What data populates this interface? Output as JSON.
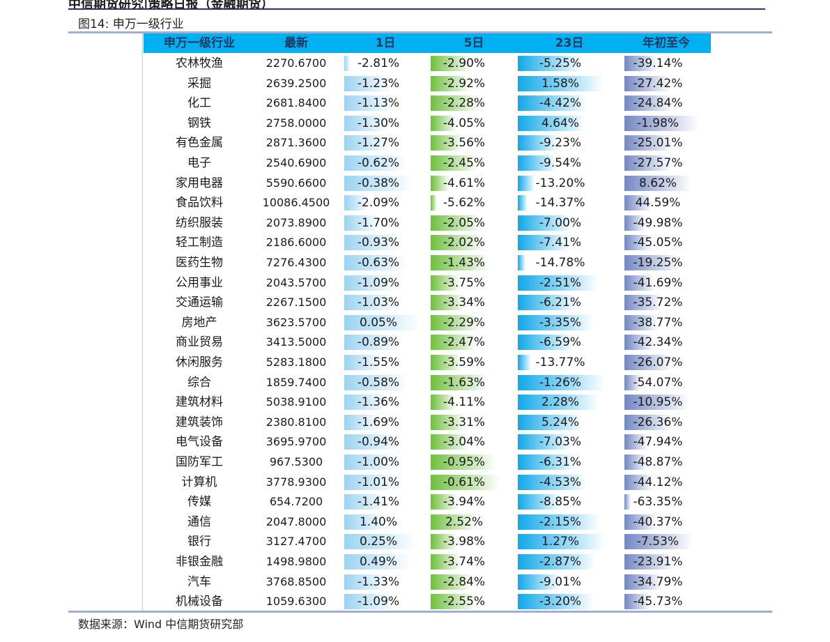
{
  "header": {
    "report_title": "中信期货研究|策略日报（金融期货）",
    "figure_caption": "图14: 申万一级行业",
    "source": "数据来源：Wind    中信期货研究部"
  },
  "table": {
    "columns": [
      "申万一级行业",
      "最新",
      "1日",
      "5日",
      "23日",
      "年初至今"
    ],
    "rows": [
      {
        "name": "农林牧渔",
        "latest": "2270.6700",
        "d1": "-2.81%",
        "d5": "-2.90%",
        "d23": "-5.25%",
        "ytd": "-39.14%"
      },
      {
        "name": "采掘",
        "latest": "2639.2500",
        "d1": "-1.23%",
        "d5": "-2.92%",
        "d23": "1.58%",
        "ytd": "-27.42%"
      },
      {
        "name": "化工",
        "latest": "2681.8400",
        "d1": "-1.13%",
        "d5": "-2.28%",
        "d23": "-4.42%",
        "ytd": "-24.84%"
      },
      {
        "name": "钢铁",
        "latest": "2758.0000",
        "d1": "-1.30%",
        "d5": "-4.05%",
        "d23": "4.64%",
        "ytd": "-1.98%"
      },
      {
        "name": "有色金属",
        "latest": "2871.3600",
        "d1": "-1.27%",
        "d5": "-3.56%",
        "d23": "-9.23%",
        "ytd": "-25.01%"
      },
      {
        "name": "电子",
        "latest": "2540.6900",
        "d1": "-0.62%",
        "d5": "-2.45%",
        "d23": "-9.54%",
        "ytd": "-27.57%"
      },
      {
        "name": "家用电器",
        "latest": "5590.6600",
        "d1": "-0.38%",
        "d5": "-4.61%",
        "d23": "-13.20%",
        "ytd": "8.62%"
      },
      {
        "name": "食品饮料",
        "latest": "10086.4500",
        "d1": "-2.09%",
        "d5": "-5.62%",
        "d23": "-14.37%",
        "ytd": "44.59%"
      },
      {
        "name": "纺织服装",
        "latest": "2073.8900",
        "d1": "-1.70%",
        "d5": "-2.05%",
        "d23": "-7.00%",
        "ytd": "-49.98%"
      },
      {
        "name": "轻工制造",
        "latest": "2186.6000",
        "d1": "-0.93%",
        "d5": "-2.02%",
        "d23": "-7.41%",
        "ytd": "-45.05%"
      },
      {
        "name": "医药生物",
        "latest": "7276.4300",
        "d1": "-0.63%",
        "d5": "-1.43%",
        "d23": "-14.78%",
        "ytd": "-19.25%"
      },
      {
        "name": "公用事业",
        "latest": "2043.5700",
        "d1": "-1.09%",
        "d5": "-3.75%",
        "d23": "-2.51%",
        "ytd": "-41.69%"
      },
      {
        "name": "交通运输",
        "latest": "2267.1500",
        "d1": "-1.03%",
        "d5": "-3.34%",
        "d23": "-6.21%",
        "ytd": "-35.72%"
      },
      {
        "name": "房地产",
        "latest": "3623.5700",
        "d1": "0.05%",
        "d5": "-2.29%",
        "d23": "-3.35%",
        "ytd": "-38.77%"
      },
      {
        "name": "商业贸易",
        "latest": "3413.5000",
        "d1": "-0.89%",
        "d5": "-2.47%",
        "d23": "-6.59%",
        "ytd": "-42.34%"
      },
      {
        "name": "休闲服务",
        "latest": "5283.1800",
        "d1": "-1.55%",
        "d5": "-3.59%",
        "d23": "-13.77%",
        "ytd": "-26.07%"
      },
      {
        "name": "综合",
        "latest": "1859.7400",
        "d1": "-0.58%",
        "d5": "-1.63%",
        "d23": "-1.26%",
        "ytd": "-54.07%"
      },
      {
        "name": "建筑材料",
        "latest": "5038.9100",
        "d1": "-1.36%",
        "d5": "-4.11%",
        "d23": "2.28%",
        "ytd": "-10.95%"
      },
      {
        "name": "建筑装饰",
        "latest": "2380.8100",
        "d1": "-1.69%",
        "d5": "-3.31%",
        "d23": "5.24%",
        "ytd": "-26.36%"
      },
      {
        "name": "电气设备",
        "latest": "3695.9700",
        "d1": "-0.94%",
        "d5": "-3.04%",
        "d23": "-7.03%",
        "ytd": "-47.94%"
      },
      {
        "name": "国防军工",
        "latest": "967.5300",
        "d1": "-1.00%",
        "d5": "-0.95%",
        "d23": "-6.31%",
        "ytd": "-48.87%"
      },
      {
        "name": "计算机",
        "latest": "3778.9300",
        "d1": "-1.01%",
        "d5": "-0.61%",
        "d23": "-4.53%",
        "ytd": "-44.12%"
      },
      {
        "name": "传媒",
        "latest": "654.7200",
        "d1": "-1.41%",
        "d5": "-3.94%",
        "d23": "-8.85%",
        "ytd": "-63.35%"
      },
      {
        "name": "通信",
        "latest": "2047.8000",
        "d1": "1.40%",
        "d5": "2.52%",
        "d23": "-2.15%",
        "ytd": "-40.37%"
      },
      {
        "name": "银行",
        "latest": "3127.4700",
        "d1": "0.25%",
        "d5": "-3.98%",
        "d23": "1.27%",
        "ytd": "-7.53%"
      },
      {
        "name": "非银金融",
        "latest": "1498.9800",
        "d1": "0.49%",
        "d5": "-3.74%",
        "d23": "-2.87%",
        "ytd": "-23.91%"
      },
      {
        "name": "汽车",
        "latest": "3768.8500",
        "d1": "-1.33%",
        "d5": "-2.84%",
        "d23": "-9.01%",
        "ytd": "-34.79%"
      },
      {
        "name": "机械设备",
        "latest": "1059.6300",
        "d1": "-1.09%",
        "d5": "-2.55%",
        "d23": "-3.20%",
        "ytd": "-45.73%"
      }
    ]
  },
  "colors": {
    "header_bg": "#00b0f0",
    "bar_1d": "#9bd3f1",
    "bar_5d": "#6fbf3f",
    "bar_23d": "#11a8e8",
    "bar_ytd": "#7388c2"
  }
}
